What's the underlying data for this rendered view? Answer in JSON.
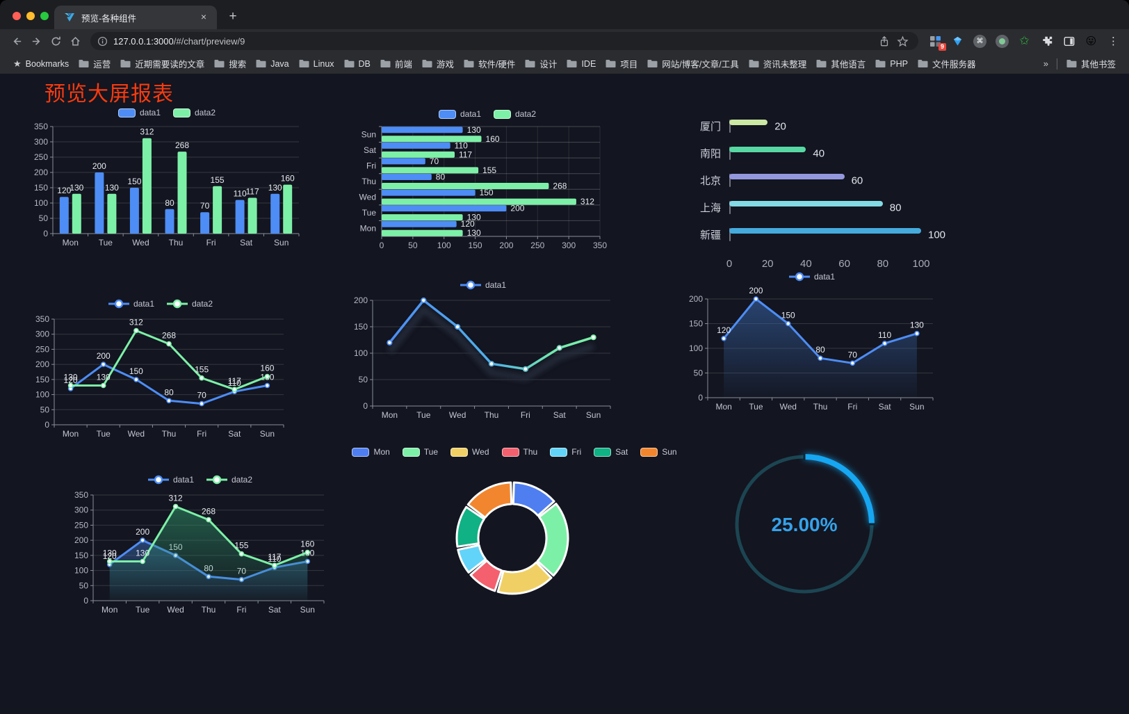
{
  "browser": {
    "tab_title": "预览-各种组件",
    "url_host": "127.0.0.1:3000",
    "url_path": "/#/chart/preview/9",
    "extension_badge": "9",
    "bookmarks_label": "Bookmarks",
    "bookmarks": [
      "运营",
      "近期需要读的文章",
      "搜索",
      "Java",
      "Linux",
      "DB",
      "前端",
      "游戏",
      "软件/硬件",
      "设计",
      "IDE",
      "项目",
      "网站/博客/文章/工具",
      "资讯未整理",
      "其他语言",
      "PHP",
      "文件服务器"
    ],
    "overflow_chevron": "»",
    "other_bookmarks": "其他书签"
  },
  "page": {
    "title": "预览大屏报表",
    "title_color": "#f63b10"
  },
  "chart_data": [
    {
      "id": "bar-grouped",
      "type": "bar",
      "categories": [
        "Mon",
        "Tue",
        "Wed",
        "Thu",
        "Fri",
        "Sat",
        "Sun"
      ],
      "series": [
        {
          "name": "data1",
          "color": "#4d8df5",
          "values": [
            120,
            200,
            150,
            80,
            70,
            110,
            130
          ]
        },
        {
          "name": "data2",
          "color": "#7df0a7",
          "values": [
            130,
            130,
            312,
            268,
            155,
            117,
            160
          ]
        }
      ],
      "ylim": [
        0,
        350
      ],
      "yticks": [
        0,
        50,
        100,
        150,
        200,
        250,
        300,
        350
      ],
      "value_labels": true,
      "legend_position": "top"
    },
    {
      "id": "bar-horizontal",
      "type": "hbar",
      "categories": [
        "Mon",
        "Tue",
        "Wed",
        "Thu",
        "Fri",
        "Sat",
        "Sun"
      ],
      "series": [
        {
          "name": "data1",
          "color": "#4d8df5",
          "values": [
            120,
            200,
            150,
            80,
            70,
            110,
            130
          ]
        },
        {
          "name": "data2",
          "color": "#7df0a7",
          "values": [
            130,
            130,
            312,
            268,
            155,
            117,
            160
          ]
        }
      ],
      "xlim": [
        0,
        350
      ],
      "xticks": [
        0,
        50,
        100,
        150,
        200,
        250,
        300,
        350
      ],
      "value_labels": true,
      "legend_position": "top"
    },
    {
      "id": "city-progress",
      "type": "progress",
      "items": [
        {
          "label": "厦门",
          "value": 20,
          "color": "#cce9a4"
        },
        {
          "label": "南阳",
          "value": 40,
          "color": "#57d8a3"
        },
        {
          "label": "北京",
          "value": 60,
          "color": "#9398de"
        },
        {
          "label": "上海",
          "value": 80,
          "color": "#83d9e4"
        },
        {
          "label": "新疆",
          "value": 100,
          "color": "#45abdd"
        }
      ],
      "xlim": [
        0,
        100
      ],
      "xticks": [
        0,
        20,
        40,
        60,
        80,
        100
      ]
    },
    {
      "id": "line-dual",
      "type": "line",
      "categories": [
        "Mon",
        "Tue",
        "Wed",
        "Thu",
        "Fri",
        "Sat",
        "Sun"
      ],
      "series": [
        {
          "name": "data1",
          "color": "#4d8df5",
          "values": [
            120,
            200,
            150,
            80,
            70,
            110,
            130
          ]
        },
        {
          "name": "data2",
          "color": "#7df0a7",
          "values": [
            130,
            130,
            312,
            268,
            155,
            117,
            160
          ]
        }
      ],
      "ylim": [
        0,
        350
      ],
      "yticks": [
        0,
        50,
        100,
        150,
        200,
        250,
        300,
        350
      ],
      "value_labels": true,
      "legend_position": "top"
    },
    {
      "id": "line-gradient",
      "type": "line-gradient",
      "categories": [
        "Mon",
        "Tue",
        "Wed",
        "Thu",
        "Fri",
        "Sat",
        "Sun"
      ],
      "series": [
        {
          "name": "data1",
          "color": "#4d8df5",
          "values": [
            120,
            200,
            150,
            80,
            70,
            110,
            130
          ]
        }
      ],
      "gradient": [
        "#4d8df5",
        "#7df0a7"
      ],
      "ylim": [
        0,
        200
      ],
      "yticks": [
        0,
        50,
        100,
        150,
        200
      ],
      "value_labels": false,
      "legend_position": "top"
    },
    {
      "id": "line-area-single",
      "type": "line-area",
      "categories": [
        "Mon",
        "Tue",
        "Wed",
        "Thu",
        "Fri",
        "Sat",
        "Sun"
      ],
      "series": [
        {
          "name": "data1",
          "color": "#4d8df5",
          "fill": "#3a6ab0",
          "values": [
            120,
            200,
            150,
            80,
            70,
            110,
            130
          ]
        }
      ],
      "ylim": [
        0,
        200
      ],
      "yticks": [
        0,
        50,
        100,
        150,
        200
      ],
      "value_labels": true,
      "legend_position": "top"
    },
    {
      "id": "area-dual",
      "type": "area",
      "categories": [
        "Mon",
        "Tue",
        "Wed",
        "Thu",
        "Fri",
        "Sat",
        "Sun"
      ],
      "series": [
        {
          "name": "data1",
          "color": "#4d8df5",
          "fill": "#3a6ab0",
          "values": [
            120,
            200,
            150,
            80,
            70,
            110,
            130
          ]
        },
        {
          "name": "data2",
          "color": "#7df0a7",
          "fill": "#2f9468",
          "values": [
            130,
            130,
            312,
            268,
            155,
            117,
            160
          ]
        }
      ],
      "ylim": [
        0,
        350
      ],
      "yticks": [
        0,
        50,
        100,
        150,
        200,
        250,
        300,
        350
      ],
      "value_labels": true,
      "legend_position": "top"
    },
    {
      "id": "weekday-donut",
      "type": "pie",
      "items": [
        {
          "label": "Mon",
          "value": 120,
          "color": "#4f7ef0"
        },
        {
          "label": "Tue",
          "value": 200,
          "color": "#7df0a7"
        },
        {
          "label": "Wed",
          "value": 150,
          "color": "#f0d064"
        },
        {
          "label": "Thu",
          "value": 80,
          "color": "#f4606e"
        },
        {
          "label": "Fri",
          "value": 70,
          "color": "#62d4f9"
        },
        {
          "label": "Sat",
          "value": 110,
          "color": "#10b184"
        },
        {
          "label": "Sun",
          "value": 130,
          "color": "#f2862e"
        }
      ],
      "legend_position": "top"
    },
    {
      "id": "percent-gauge",
      "type": "gauge",
      "label": "25.00%",
      "percent": 25,
      "color": "#18a7f2",
      "track_color": "#1c4552",
      "text_color": "#35a2ea"
    }
  ]
}
